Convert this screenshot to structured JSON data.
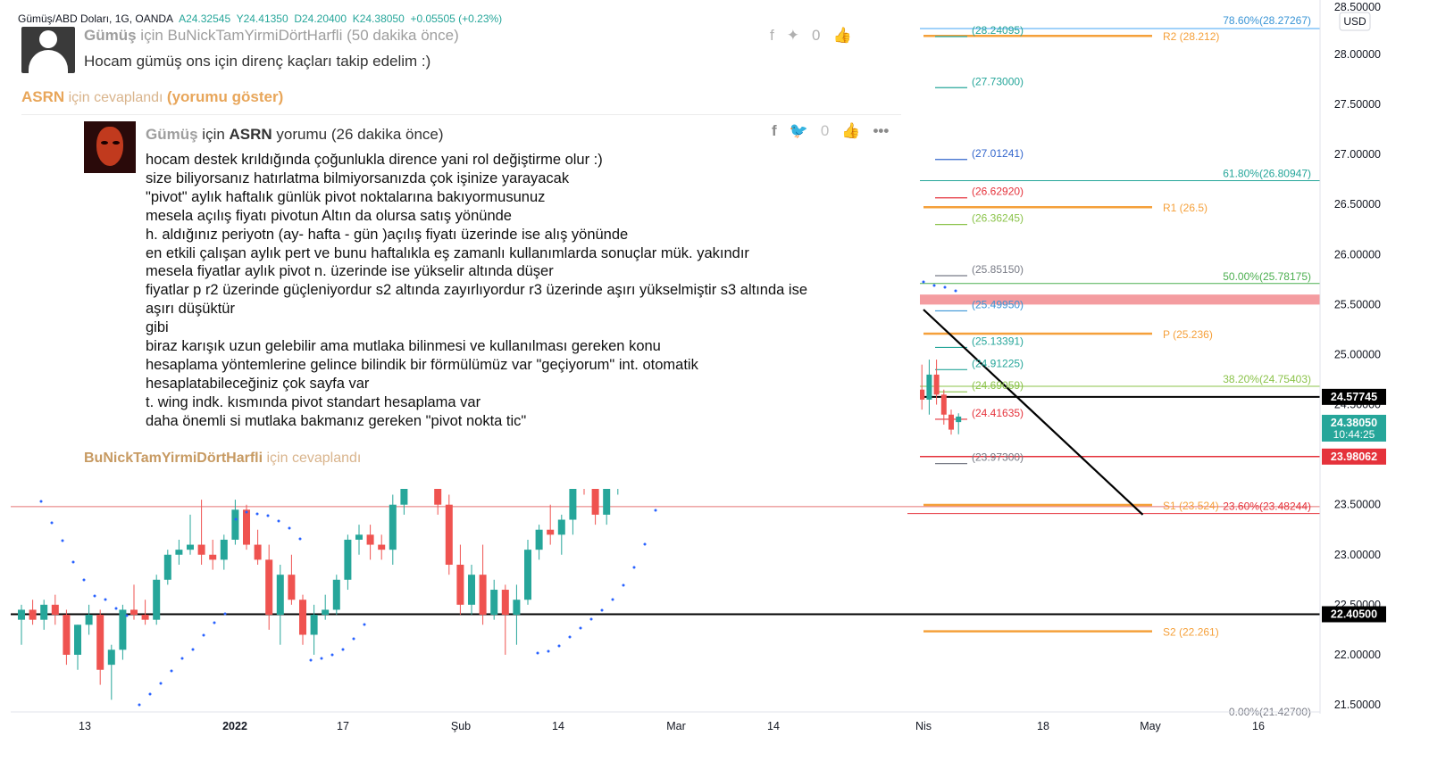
{
  "header": {
    "symbol": "Gümüş/ABD Doları, 1G, OANDA",
    "open": "A24.32545",
    "high": "Y24.41350",
    "low": "D24.20400",
    "close": "K24.38050",
    "change": "+0.05505 (+0.23%)"
  },
  "currency_badge": "USD",
  "chart_data": {
    "type": "candlestick",
    "y_axis": {
      "min": 21.5,
      "max": 28.25,
      "ticks": [
        "28.00000",
        "27.50000",
        "27.00000",
        "26.50000",
        "26.00000",
        "25.50000",
        "25.00000",
        "24.50000",
        "24.00000",
        "23.50000",
        "23.00000",
        "22.50000",
        "22.00000",
        "21.50000"
      ],
      "tick_values": [
        28,
        27.5,
        27,
        26.5,
        26,
        25.5,
        25,
        24.5,
        24,
        23.5,
        23,
        22.5,
        22,
        21.5
      ],
      "top_partial": "28.50000"
    },
    "x_axis": {
      "ticks": [
        "13",
        "2022",
        "17",
        "Şub",
        "14",
        "Mar",
        "14",
        "Nis",
        "18",
        "May",
        "16"
      ]
    },
    "price_labels": [
      {
        "text": "24.57745",
        "value": 24.57745,
        "bg": "#000000"
      },
      {
        "text": "24.38050",
        "sub": "10:44:25",
        "value": 24.3805,
        "bg": "#26a69a"
      },
      {
        "text": "23.98062",
        "value": 23.98062,
        "bg": "#e5323b"
      },
      {
        "text": "22.40500",
        "value": 22.405,
        "bg": "#000000"
      }
    ],
    "fib_levels": [
      {
        "text": "78.60%(28.27267)",
        "value": 28.27267,
        "color": "#3a95d6"
      },
      {
        "text": "61.80%(26.80947)",
        "value": 26.80947,
        "color": "#26a69a"
      },
      {
        "text": "50.00%(25.78175)",
        "value": 25.78175,
        "color": "#4caf50"
      },
      {
        "text": "38.20%(24.75403)",
        "value": 24.75403,
        "color": "#8bc34a"
      },
      {
        "text": "23.60%(23.48244)",
        "value": 23.48244,
        "color": "#e5323b"
      },
      {
        "text": "0.00%(21.42700)",
        "value": 21.427,
        "color": "#787b86"
      }
    ],
    "pivots": [
      {
        "text": "R2 (28.212)",
        "value": 28.212
      },
      {
        "text": "R1 (26.5)",
        "value": 26.5
      },
      {
        "text": "P (25.236)",
        "value": 25.236
      },
      {
        "text": "S1 (23.524)",
        "value": 23.524
      },
      {
        "text": "S2 (22.261)",
        "value": 22.261
      }
    ],
    "price_tags": [
      {
        "text": "(28.24095)",
        "value": 28.24095,
        "color": "#26a69a"
      },
      {
        "text": "(27.73000)",
        "value": 27.73,
        "color": "#26a69a"
      },
      {
        "text": "(27.01241)",
        "value": 27.01241,
        "color": "#3366cc"
      },
      {
        "text": "(26.62920)",
        "value": 26.6292,
        "color": "#e5323b"
      },
      {
        "text": "(26.36245)",
        "value": 26.36245,
        "color": "#8bc34a"
      },
      {
        "text": "(25.85150)",
        "value": 25.8515,
        "color": "#787b86"
      },
      {
        "text": "(25.49950)",
        "value": 25.4995,
        "color": "#3a95d6"
      },
      {
        "text": "(25.13391)",
        "value": 25.13391,
        "color": "#26a69a"
      },
      {
        "text": "(24.91225)",
        "value": 24.91225,
        "color": "#26a69a"
      },
      {
        "text": "(24.69059)",
        "value": 24.69059,
        "color": "#8bc34a"
      },
      {
        "text": "(24.41635)",
        "value": 24.41635,
        "color": "#e5323b"
      },
      {
        "text": "(23.97300)",
        "value": 23.973,
        "color": "#787b86"
      }
    ],
    "resistance_zone": {
      "from": 25.5,
      "to": 25.6
    },
    "horizontal_lines": [
      24.57745,
      22.405
    ],
    "red_thin_line": 23.48,
    "trendline": {
      "from": {
        "date": "2022-04-01",
        "value": 25.45
      },
      "to": {
        "date": "2022-04-30",
        "value": 23.4
      }
    },
    "candles": [
      {
        "o": 22.35,
        "h": 22.5,
        "l": 22.1,
        "c": 22.45
      },
      {
        "o": 22.45,
        "h": 22.55,
        "l": 22.3,
        "c": 22.35
      },
      {
        "o": 22.35,
        "h": 22.55,
        "l": 22.25,
        "c": 22.5
      },
      {
        "o": 22.5,
        "h": 22.6,
        "l": 22.3,
        "c": 22.4
      },
      {
        "o": 22.4,
        "h": 22.45,
        "l": 21.9,
        "c": 22.0
      },
      {
        "o": 22.0,
        "h": 22.3,
        "l": 21.85,
        "c": 22.3
      },
      {
        "o": 22.3,
        "h": 22.5,
        "l": 22.2,
        "c": 22.4
      },
      {
        "o": 22.4,
        "h": 22.45,
        "l": 21.7,
        "c": 21.85
      },
      {
        "o": 21.9,
        "h": 22.1,
        "l": 21.55,
        "c": 22.05
      },
      {
        "o": 22.05,
        "h": 22.5,
        "l": 21.95,
        "c": 22.45
      },
      {
        "o": 22.45,
        "h": 22.7,
        "l": 22.35,
        "c": 22.4
      },
      {
        "o": 22.4,
        "h": 22.55,
        "l": 22.3,
        "c": 22.35
      },
      {
        "o": 22.35,
        "h": 22.8,
        "l": 22.3,
        "c": 22.75
      },
      {
        "o": 22.75,
        "h": 23.05,
        "l": 22.7,
        "c": 23.0
      },
      {
        "o": 23.0,
        "h": 23.15,
        "l": 22.9,
        "c": 23.05
      },
      {
        "o": 23.05,
        "h": 23.4,
        "l": 23.0,
        "c": 23.1
      },
      {
        "o": 23.1,
        "h": 23.55,
        "l": 22.9,
        "c": 23.0
      },
      {
        "o": 23.0,
        "h": 23.15,
        "l": 22.85,
        "c": 22.95
      },
      {
        "o": 22.95,
        "h": 23.2,
        "l": 22.85,
        "c": 23.15
      },
      {
        "o": 23.15,
        "h": 23.55,
        "l": 23.1,
        "c": 23.45
      },
      {
        "o": 23.45,
        "h": 23.5,
        "l": 23.05,
        "c": 23.1
      },
      {
        "o": 23.1,
        "h": 23.25,
        "l": 22.9,
        "c": 22.95
      },
      {
        "o": 22.95,
        "h": 23.1,
        "l": 22.25,
        "c": 22.4
      },
      {
        "o": 22.4,
        "h": 22.9,
        "l": 22.1,
        "c": 22.8
      },
      {
        "o": 22.8,
        "h": 23.0,
        "l": 22.5,
        "c": 22.55
      },
      {
        "o": 22.55,
        "h": 22.6,
        "l": 22.1,
        "c": 22.2
      },
      {
        "o": 22.2,
        "h": 22.5,
        "l": 22.0,
        "c": 22.4
      },
      {
        "o": 22.4,
        "h": 22.6,
        "l": 22.35,
        "c": 22.45
      },
      {
        "o": 22.45,
        "h": 22.8,
        "l": 22.4,
        "c": 22.75
      },
      {
        "o": 22.75,
        "h": 23.2,
        "l": 22.65,
        "c": 23.15
      },
      {
        "o": 23.15,
        "h": 23.3,
        "l": 23.0,
        "c": 23.2
      },
      {
        "o": 23.2,
        "h": 23.3,
        "l": 22.95,
        "c": 23.1
      },
      {
        "o": 23.1,
        "h": 23.2,
        "l": 22.95,
        "c": 23.05
      },
      {
        "o": 23.05,
        "h": 23.6,
        "l": 22.9,
        "c": 23.5
      },
      {
        "o": 23.5,
        "h": 24.15,
        "l": 23.4,
        "c": 24.1
      },
      {
        "o": 24.1,
        "h": 24.3,
        "l": 23.9,
        "c": 24.0
      },
      {
        "o": 24.0,
        "h": 24.2,
        "l": 23.85,
        "c": 23.9
      },
      {
        "o": 23.9,
        "h": 24.1,
        "l": 23.4,
        "c": 23.5
      },
      {
        "o": 23.5,
        "h": 23.6,
        "l": 22.8,
        "c": 22.9
      },
      {
        "o": 22.9,
        "h": 23.1,
        "l": 22.4,
        "c": 22.5
      },
      {
        "o": 22.5,
        "h": 22.9,
        "l": 22.4,
        "c": 22.8
      },
      {
        "o": 22.8,
        "h": 23.1,
        "l": 22.3,
        "c": 22.4
      },
      {
        "o": 22.4,
        "h": 22.75,
        "l": 22.35,
        "c": 22.65
      },
      {
        "o": 22.65,
        "h": 22.7,
        "l": 22.0,
        "c": 22.4
      },
      {
        "o": 22.4,
        "h": 22.7,
        "l": 22.1,
        "c": 22.55
      },
      {
        "o": 22.55,
        "h": 23.15,
        "l": 22.5,
        "c": 23.05
      },
      {
        "o": 23.05,
        "h": 23.3,
        "l": 22.95,
        "c": 23.25
      },
      {
        "o": 23.25,
        "h": 23.5,
        "l": 23.1,
        "c": 23.2
      },
      {
        "o": 23.2,
        "h": 23.4,
        "l": 23.0,
        "c": 23.35
      },
      {
        "o": 23.35,
        "h": 23.9,
        "l": 23.2,
        "c": 23.85
      },
      {
        "o": 23.85,
        "h": 24.0,
        "l": 23.6,
        "c": 23.7
      },
      {
        "o": 23.7,
        "h": 24.0,
        "l": 23.3,
        "c": 23.4
      },
      {
        "o": 23.4,
        "h": 23.8,
        "l": 23.3,
        "c": 23.7
      },
      {
        "o": 23.7,
        "h": 24.1,
        "l": 23.6,
        "c": 24.0
      },
      {
        "o": 24.0,
        "h": 24.1,
        "l": 23.8,
        "c": 24.05
      },
      {
        "o": 24.05,
        "h": 24.1,
        "l": 23.9,
        "c": 24.0
      }
    ],
    "recent_candles": [
      {
        "o": 24.75,
        "h": 25.1,
        "l": 24.55,
        "c": 24.65
      },
      {
        "o": 24.65,
        "h": 24.9,
        "l": 24.45,
        "c": 24.55
      },
      {
        "o": 24.55,
        "h": 24.95,
        "l": 24.4,
        "c": 24.8
      },
      {
        "o": 24.8,
        "h": 24.95,
        "l": 24.5,
        "c": 24.6
      },
      {
        "o": 24.6,
        "h": 24.65,
        "l": 24.3,
        "c": 24.4
      },
      {
        "o": 24.4,
        "h": 24.45,
        "l": 24.2,
        "c": 24.25
      },
      {
        "o": 24.32545,
        "h": 24.4135,
        "l": 24.204,
        "c": 24.3805
      }
    ]
  },
  "comments": {
    "top": {
      "header_user": "Gümüş",
      "header_rest": " için BuNickTamYirmiDörtHarfli (50 dakika önce)",
      "text": "Hocam gümüş ons için direnç kaçları takip edelim :)"
    },
    "reply_to_top": {
      "user": "ASRN",
      "mid": " için cevaplandı ",
      "link": "(yorumu göster)"
    },
    "main": {
      "header_user": "Gümüş",
      "header_mid": " için ",
      "header_user2": "ASRN",
      "header_rest": " yorumu (26 dakika önce)",
      "like_count": "0",
      "lines": [
        "hocam destek krıldığında çoğunlukla dirence yani rol değiştirme olur :)",
        "size biliyorsanız hatırlatma bilmiyorsanızda çok işinize yarayacak",
        "\"pivot\" aylık haftalık günlük pivot noktalarına bakıyormusunuz",
        "mesela açılış fiyatı pivotun Altın da olursa satış yönünde",
        "h. aldığınız periyotn (ay- hafta - gün )açılış fiyatı üzerinde ise alış yönünde",
        "en etkili çalışan aylık pert ve bunu haftalıkla eş zamanlı kullanımlarda sonuçlar mük. yakındır",
        "mesela fiyatlar aylık pivot n. üzerinde ise yükselir altında düşer",
        "fiyatlar p r2 üzerinde güçleniyordur s2 altında zayırlıyordur r3 üzerinde aşırı yükselmiştir s3 altında ise",
        "aşırı düşüktür",
        "gibi",
        "biraz karışık uzun gelebilir ama mutlaka bilinmesi ve kullanılması gereken konu",
        "hesaplama yöntemlerine gelince bilindik bir förmülümüz var \"geçiyorum\" int. otomatik",
        "hesaplatabileceğiniz çok sayfa var",
        "t. wing indk. kısmında pivot standart hesaplama var",
        "daha önemli si mutlaka bakmanız gereken \"pivot nokta tic\""
      ]
    },
    "reply_to_main": {
      "user": "BuNickTamYirmiDörtHarfli",
      "rest": " için cevaplandı"
    }
  }
}
